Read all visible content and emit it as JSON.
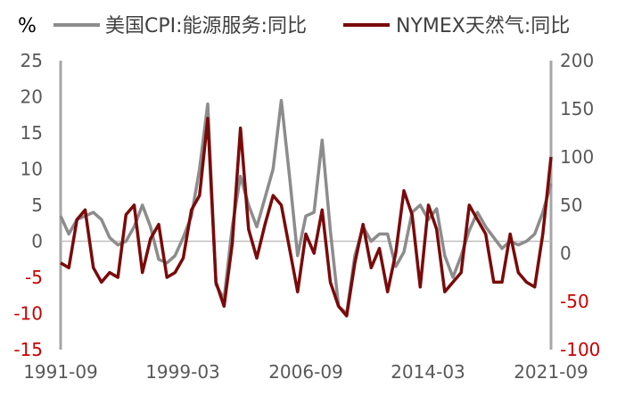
{
  "chart_data": {
    "type": "line",
    "title": "",
    "y_unit_left": "%",
    "xlabel": "",
    "ylabel_left": "",
    "ylabel_right": "",
    "grid": false,
    "legend_position": "top",
    "x_tick_labels": [
      "1991-09",
      "1999-03",
      "2006-09",
      "2014-03",
      "2021-09"
    ],
    "left_axis": {
      "ylim": [
        -15,
        25
      ],
      "ticks": [
        25,
        20,
        15,
        10,
        5,
        0,
        -5,
        -10,
        -15
      ],
      "tick_labels": [
        "25",
        "20",
        "15",
        "10",
        "5",
        "0",
        "-5",
        "-10",
        "-15"
      ],
      "negative_color": "#cc0000"
    },
    "right_axis": {
      "ylim": [
        -100,
        200
      ],
      "ticks": [
        200,
        150,
        100,
        50,
        0,
        -50,
        -100
      ],
      "tick_labels": [
        "200",
        "150",
        "100",
        "50",
        "0",
        "-50",
        "-100"
      ],
      "negative_color": "#cc0000"
    },
    "series": [
      {
        "name": "美国CPI:能源服务:同比",
        "axis": "left",
        "color": "#8c8c8c",
        "x": [
          "1991-09",
          "1992-03",
          "1992-09",
          "1993-03",
          "1993-09",
          "1994-03",
          "1994-09",
          "1995-03",
          "1995-09",
          "1996-03",
          "1996-09",
          "1997-03",
          "1997-09",
          "1998-03",
          "1998-09",
          "1999-03",
          "1999-09",
          "2000-03",
          "2000-09",
          "2001-03",
          "2001-09",
          "2002-03",
          "2002-09",
          "2003-03",
          "2003-09",
          "2004-03",
          "2004-09",
          "2005-03",
          "2005-09",
          "2006-03",
          "2006-09",
          "2007-03",
          "2007-09",
          "2008-03",
          "2008-09",
          "2009-03",
          "2009-09",
          "2010-03",
          "2010-09",
          "2011-03",
          "2011-09",
          "2012-03",
          "2012-09",
          "2013-03",
          "2013-09",
          "2014-03",
          "2014-09",
          "2015-03",
          "2015-09",
          "2016-03",
          "2016-09",
          "2017-03",
          "2017-09",
          "2018-03",
          "2018-09",
          "2019-03",
          "2019-09",
          "2020-03",
          "2020-09",
          "2021-03",
          "2021-09"
        ],
        "values": [
          3.5,
          1.0,
          3.0,
          3.5,
          4.0,
          3.0,
          0.5,
          -0.5,
          0.0,
          2.0,
          5.0,
          2.0,
          -2.5,
          -3.0,
          -2.0,
          0.5,
          3.5,
          10.0,
          19.0,
          -6.0,
          -8.0,
          2.0,
          9.0,
          5.0,
          2.0,
          6.0,
          10.0,
          19.5,
          9.0,
          -2.0,
          3.5,
          4.0,
          14.0,
          1.5,
          -9.0,
          -10.0,
          -2.0,
          2.0,
          0.0,
          1.0,
          1.0,
          -3.5,
          -1.5,
          4.0,
          5.0,
          3.0,
          4.5,
          -2.0,
          -5.0,
          -2.0,
          1.5,
          4.0,
          2.0,
          0.5,
          -1.0,
          0.0,
          -0.5,
          0.0,
          1.0,
          4.0,
          8.0
        ]
      },
      {
        "name": "NYMEX天然气:同比",
        "axis": "right",
        "color": "#7a0a0a",
        "x": [
          "1991-09",
          "1992-03",
          "1992-09",
          "1993-03",
          "1993-09",
          "1994-03",
          "1994-09",
          "1995-03",
          "1995-09",
          "1996-03",
          "1996-09",
          "1997-03",
          "1997-09",
          "1998-03",
          "1998-09",
          "1999-03",
          "1999-09",
          "2000-03",
          "2000-09",
          "2001-03",
          "2001-09",
          "2002-03",
          "2002-09",
          "2003-03",
          "2003-09",
          "2004-03",
          "2004-09",
          "2005-03",
          "2005-09",
          "2006-03",
          "2006-09",
          "2007-03",
          "2007-09",
          "2008-03",
          "2008-09",
          "2009-03",
          "2009-09",
          "2010-03",
          "2010-09",
          "2011-03",
          "2011-09",
          "2012-03",
          "2012-09",
          "2013-03",
          "2013-09",
          "2014-03",
          "2014-09",
          "2015-03",
          "2015-09",
          "2016-03",
          "2016-09",
          "2017-03",
          "2017-09",
          "2018-03",
          "2018-09",
          "2019-03",
          "2019-09",
          "2020-03",
          "2020-09",
          "2021-03",
          "2021-09"
        ],
        "values": [
          -10,
          -15,
          35,
          45,
          -15,
          -30,
          -20,
          -25,
          40,
          50,
          -20,
          15,
          30,
          -25,
          -20,
          -5,
          45,
          60,
          140,
          -30,
          -55,
          10,
          130,
          25,
          -5,
          30,
          60,
          50,
          5,
          -40,
          20,
          0,
          45,
          -30,
          -55,
          -65,
          -10,
          30,
          -15,
          5,
          -40,
          0,
          65,
          40,
          -35,
          50,
          25,
          -40,
          -30,
          -20,
          50,
          35,
          20,
          -30,
          -30,
          20,
          -20,
          -30,
          -35,
          20,
          100
        ]
      }
    ]
  }
}
